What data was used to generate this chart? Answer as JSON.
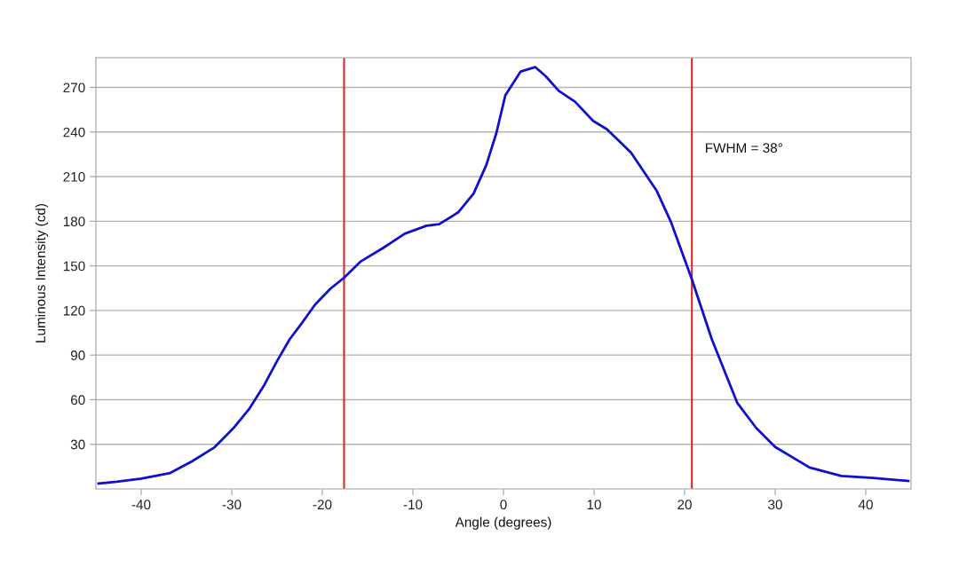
{
  "chart_data": {
    "type": "line",
    "xlabel": "Angle (degrees)",
    "ylabel": "Luminous Intensity (cd)",
    "annotations": [
      "FWHM = 38°"
    ],
    "xlim": [
      -45,
      45
    ],
    "xticks": [
      -40,
      -30,
      -20,
      -10,
      0,
      10,
      20,
      30,
      40
    ],
    "ylim": [
      0,
      290
    ],
    "yticks": [
      30,
      60,
      90,
      120,
      150,
      180,
      210,
      240,
      270
    ],
    "grid": "y",
    "legend": false,
    "marker": "none",
    "line_style": "solid",
    "ref_lines": [
      {
        "axis": "x",
        "value": -17.6,
        "color": "#d42a2a"
      },
      {
        "axis": "x",
        "value": 20.8,
        "color": "#d42a2a"
      }
    ],
    "series": [
      {
        "color": "#1010cc",
        "x": [
          -44.7,
          -42.7,
          -40,
          -36.8,
          -34.4,
          -31.9,
          -29.8,
          -28.1,
          -26.4,
          -25,
          -23.6,
          -22.2,
          -20.8,
          -19.1,
          -17.6,
          -15.8,
          -13.3,
          -10.9,
          -8.5,
          -7.1,
          -5,
          -3.3,
          -1.9,
          -0.8,
          0.2,
          1.9,
          3.5,
          4.7,
          6.1,
          7.9,
          9.9,
          11.4,
          13,
          14.1,
          16.9,
          18.5,
          20.8,
          23,
          25.8,
          27.9,
          30,
          33.8,
          37.3,
          40.8,
          44.7
        ],
        "values": [
          3.6,
          4.8,
          7,
          10.7,
          18.5,
          28,
          41,
          53.6,
          70,
          86,
          100.7,
          112,
          124,
          134.7,
          142,
          152.8,
          162,
          171.6,
          177,
          178,
          186,
          198.6,
          217.7,
          239,
          264.6,
          280.7,
          283.7,
          277.3,
          267.7,
          260.4,
          247.5,
          242,
          232.6,
          226,
          200.7,
          179.4,
          141,
          100.7,
          58,
          41,
          28.2,
          14.4,
          8.7,
          7.4,
          5.4
        ]
      }
    ]
  }
}
